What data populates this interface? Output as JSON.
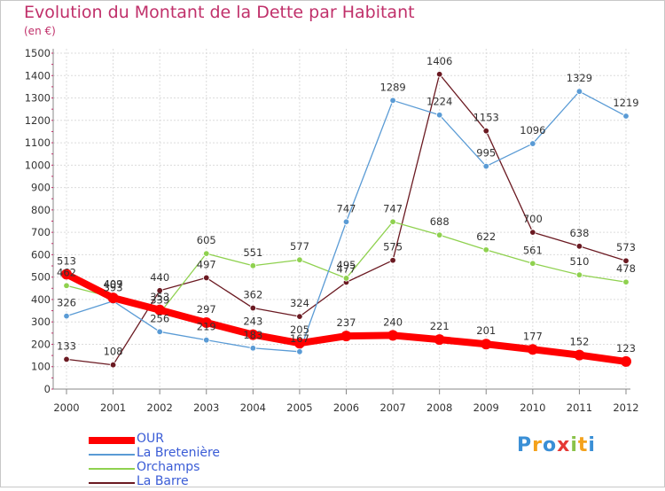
{
  "title": "Evolution du Montant de la Dette par Habitant",
  "subtitle": "(en €)",
  "brand": {
    "letters": [
      "P",
      "r",
      "o",
      "x",
      "i",
      "t",
      "i"
    ],
    "colors": [
      "#3a8fd6",
      "#f4a21c",
      "#3a8fd6",
      "#e53935",
      "#8bc34a",
      "#f4a21c",
      "#3a8fd6"
    ]
  },
  "chart_data": {
    "type": "line",
    "x": [
      "2000",
      "2001",
      "2002",
      "2003",
      "2004",
      "2005",
      "2006",
      "2007",
      "2008",
      "2009",
      "2010",
      "2011",
      "2012"
    ],
    "ylim": [
      0,
      1500
    ],
    "yticks": [
      0,
      100,
      200,
      300,
      400,
      500,
      600,
      700,
      800,
      900,
      1000,
      1100,
      1200,
      1300,
      1400,
      1500
    ],
    "grid": true,
    "legend_position": "bottom-left",
    "series": [
      {
        "name": "La Barre",
        "color": "#6b1a22",
        "values": [
          133,
          108,
          440,
          497,
          362,
          324,
          477,
          575,
          1406,
          1153,
          700,
          638,
          573
        ]
      },
      {
        "name": "Orchamps",
        "color": "#8fd14f",
        "values": [
          462,
          409,
          339,
          605,
          551,
          577,
          495,
          747,
          688,
          622,
          561,
          510,
          478
        ]
      },
      {
        "name": "La Bretenière",
        "color": "#5a9bd5",
        "values": [
          326,
          393,
          256,
          219,
          183,
          167,
          747,
          1289,
          1224,
          995,
          1096,
          1329,
          1219
        ]
      },
      {
        "name": "OUR",
        "color": "#ff0000",
        "values": [
          513,
          407,
          353,
          297,
          243,
          205,
          237,
          240,
          221,
          201,
          177,
          152,
          123
        ]
      }
    ]
  },
  "legend": [
    {
      "name": "OUR",
      "color": "#ff0000"
    },
    {
      "name": "La Bretenière",
      "color": "#5a9bd5"
    },
    {
      "name": "Orchamps",
      "color": "#8fd14f"
    },
    {
      "name": "La Barre",
      "color": "#6b1a22"
    }
  ]
}
